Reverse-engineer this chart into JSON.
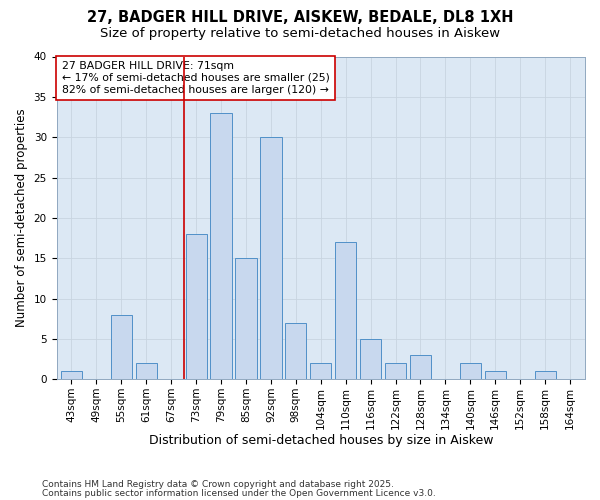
{
  "title1": "27, BADGER HILL DRIVE, AISKEW, BEDALE, DL8 1XH",
  "title2": "Size of property relative to semi-detached houses in Aiskew",
  "xlabel": "Distribution of semi-detached houses by size in Aiskew",
  "ylabel": "Number of semi-detached properties",
  "categories": [
    "43sqm",
    "49sqm",
    "55sqm",
    "61sqm",
    "67sqm",
    "73sqm",
    "79sqm",
    "85sqm",
    "92sqm",
    "98sqm",
    "104sqm",
    "110sqm",
    "116sqm",
    "122sqm",
    "128sqm",
    "134sqm",
    "140sqm",
    "146sqm",
    "152sqm",
    "158sqm",
    "164sqm"
  ],
  "values": [
    1,
    0,
    8,
    2,
    0,
    18,
    33,
    15,
    30,
    7,
    2,
    17,
    5,
    2,
    3,
    0,
    2,
    1,
    0,
    1,
    0
  ],
  "bar_color": "#c8d8ee",
  "bar_edge_color": "#5090c8",
  "vline_x_idx": 4.5,
  "vline_color": "#cc0000",
  "annotation_text": "27 BADGER HILL DRIVE: 71sqm\n← 17% of semi-detached houses are smaller (25)\n82% of semi-detached houses are larger (120) →",
  "annotation_box_color": "#ffffff",
  "annotation_box_edge": "#cc0000",
  "ylim": [
    0,
    40
  ],
  "yticks": [
    0,
    5,
    10,
    15,
    20,
    25,
    30,
    35,
    40
  ],
  "grid_color": "#c8d4e0",
  "bg_color": "#dce8f4",
  "footer1": "Contains HM Land Registry data © Crown copyright and database right 2025.",
  "footer2": "Contains public sector information licensed under the Open Government Licence v3.0.",
  "title_fontsize": 10.5,
  "subtitle_fontsize": 9.5,
  "tick_fontsize": 7.5,
  "ylabel_fontsize": 8.5,
  "xlabel_fontsize": 9,
  "annotation_fontsize": 7.8,
  "footer_fontsize": 6.5
}
